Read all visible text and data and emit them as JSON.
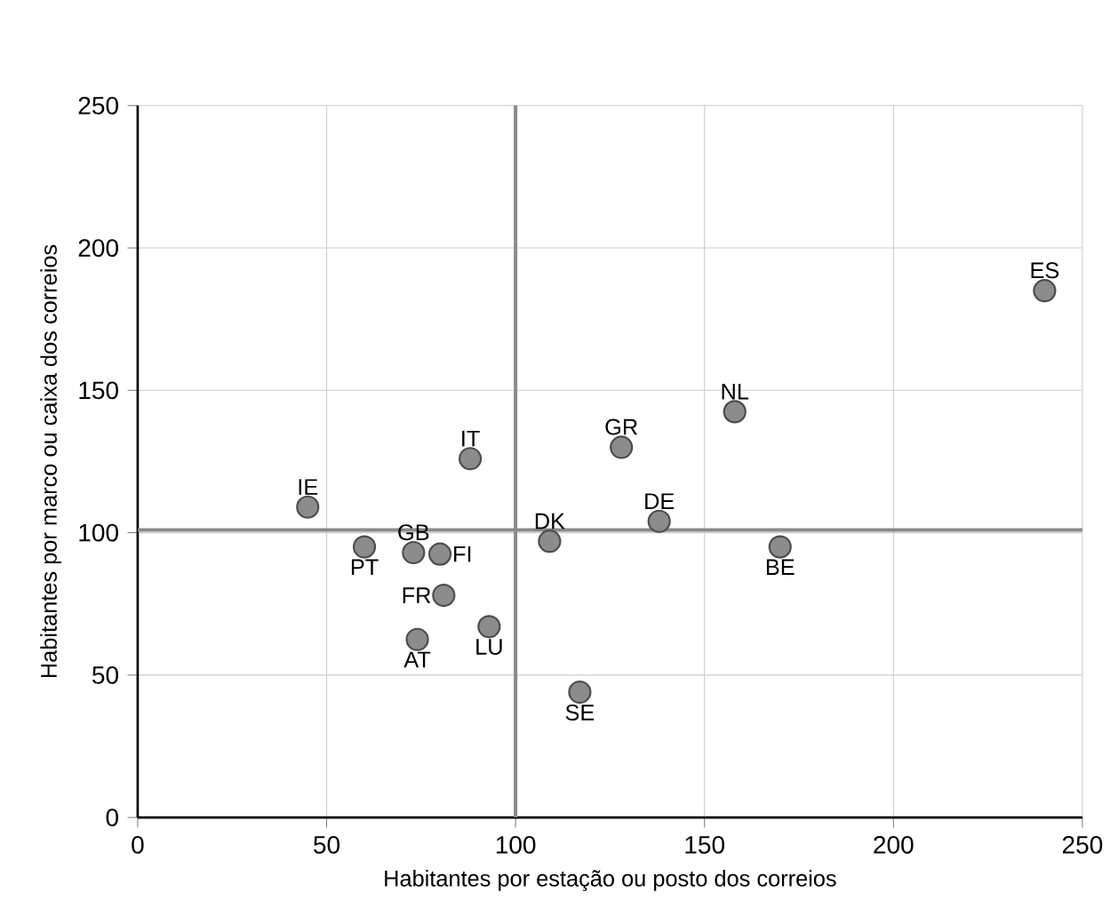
{
  "chart_data": {
    "type": "scatter",
    "xlabel": "Habitantes por estação ou posto dos correios",
    "ylabel": "Habitantes por marco ou caixa dos correios",
    "series": [
      {
        "color": "#8c8c8c",
        "x": [
          45,
          60,
          73,
          80,
          81,
          74,
          93,
          88,
          109,
          117,
          128,
          138,
          158,
          170,
          240
        ],
        "values": [
          109,
          95,
          93,
          92.5,
          78,
          62.5,
          67,
          126,
          97,
          44,
          130,
          104,
          142.5,
          95,
          185
        ]
      }
    ],
    "annotations": [
      {
        "text": "IE",
        "x": 45,
        "y": 109
      },
      {
        "text": "PT",
        "x": 60,
        "y": 95
      },
      {
        "text": "GB",
        "x": 73,
        "y": 93
      },
      {
        "text": "FI",
        "x": 80,
        "y": 92.5
      },
      {
        "text": "FR",
        "x": 81,
        "y": 78
      },
      {
        "text": "AT",
        "x": 74,
        "y": 62.5
      },
      {
        "text": "LU",
        "x": 93,
        "y": 67
      },
      {
        "text": "IT",
        "x": 88,
        "y": 126
      },
      {
        "text": "DK",
        "x": 109,
        "y": 97
      },
      {
        "text": "SE",
        "x": 117,
        "y": 44
      },
      {
        "text": "GR",
        "x": 128,
        "y": 130
      },
      {
        "text": "DE",
        "x": 138,
        "y": 104
      },
      {
        "text": "NL",
        "x": 158,
        "y": 142.5
      },
      {
        "text": "BE",
        "x": 170,
        "y": 95
      },
      {
        "text": "ES",
        "x": 240,
        "y": 185
      }
    ],
    "ref_lines": [
      {
        "axis": "x",
        "value": 100,
        "color": "#8a8a8a"
      },
      {
        "axis": "y",
        "value": 101,
        "color": "#8a8a8a"
      }
    ],
    "xlim": [
      0,
      250
    ],
    "ylim": [
      0,
      250
    ],
    "xticks": [
      0,
      50,
      100,
      150,
      200,
      250
    ],
    "yticks": [
      0,
      50,
      100,
      150,
      200,
      250
    ],
    "grid": true,
    "marker": "circle"
  }
}
